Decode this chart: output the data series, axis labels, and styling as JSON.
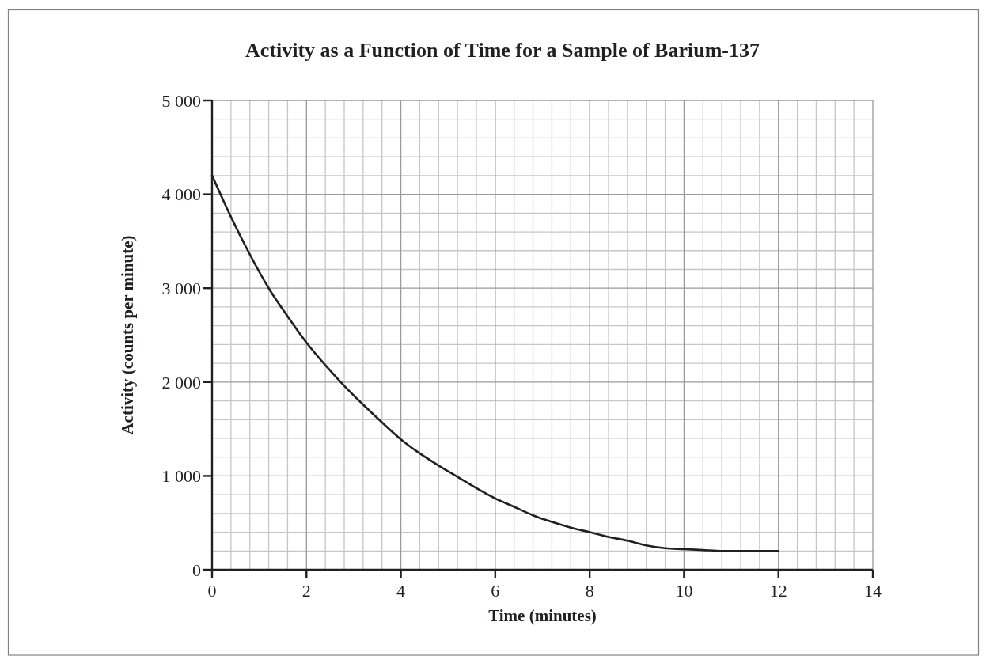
{
  "chart_data": {
    "type": "line",
    "title": "Activity as a Function of Time for a Sample of Barium-137",
    "xlabel": "Time (minutes)",
    "ylabel": "Activity (counts per minute)",
    "x": [
      0,
      0.4,
      0.8,
      1.2,
      1.6,
      2,
      2.4,
      2.8,
      3.2,
      3.6,
      4,
      4.4,
      4.8,
      5.2,
      5.6,
      6,
      6.4,
      6.8,
      7.2,
      7.6,
      8,
      8.4,
      8.8,
      9.2,
      9.6,
      10,
      10.4,
      10.8,
      11.2,
      11.6,
      12
    ],
    "series": [
      {
        "color": "#231f20",
        "values": [
          4200,
          3760,
          3360,
          3000,
          2700,
          2420,
          2180,
          1960,
          1760,
          1570,
          1390,
          1240,
          1110,
          990,
          870,
          760,
          670,
          580,
          510,
          450,
          400,
          350,
          310,
          260,
          230,
          220,
          210,
          200,
          200,
          200,
          200
        ]
      }
    ],
    "xlim": [
      0,
      14
    ],
    "xticks": [
      0,
      2,
      4,
      6,
      8,
      10,
      12,
      14
    ],
    "ylim": [
      0,
      5000
    ],
    "yticks": [
      0,
      {
        "value": 1000,
        "label": "1 000"
      },
      {
        "value": 2000,
        "label": "2 000"
      },
      {
        "value": 3000,
        "label": "3 000"
      },
      {
        "value": 4000,
        "label": "4 000"
      },
      {
        "value": 5000,
        "label": "5 000"
      }
    ],
    "grid": true
  }
}
